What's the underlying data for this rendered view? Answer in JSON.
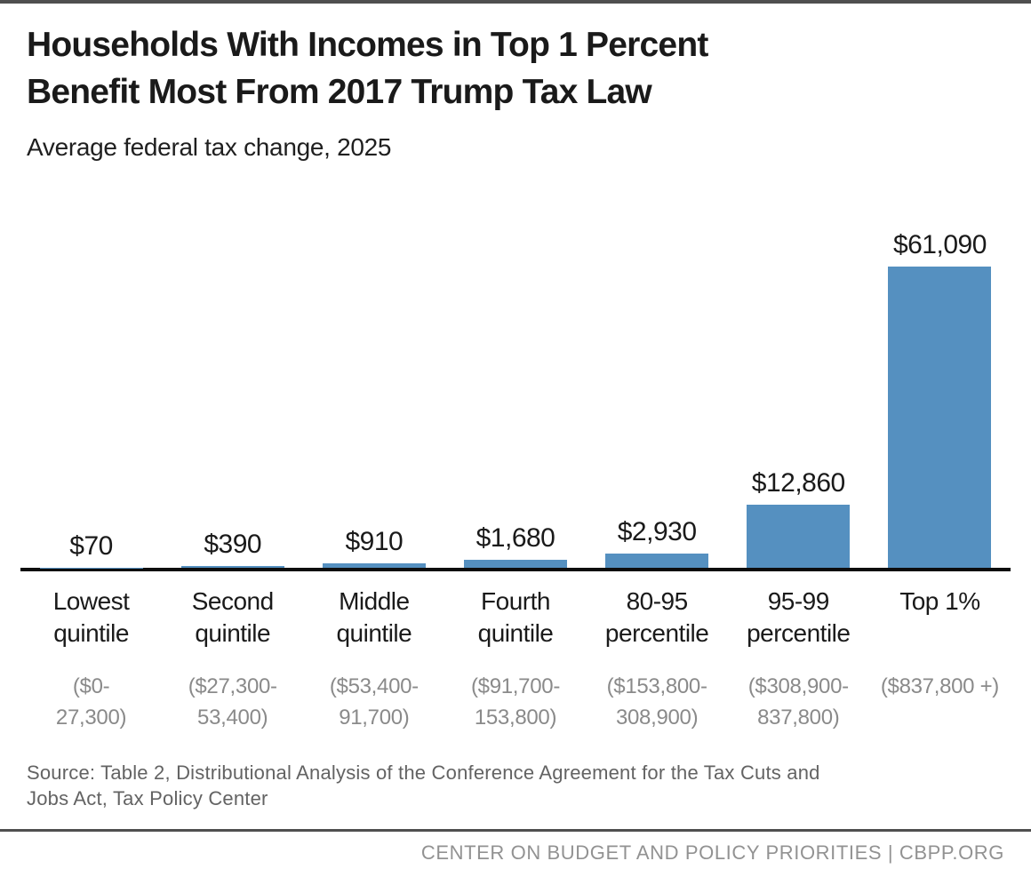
{
  "page": {
    "title_lines": [
      "Households With Incomes in Top 1 Percent",
      "Benefit Most From 2017 Trump Tax Law"
    ],
    "subtitle": "Average federal tax change, 2025",
    "source_lines": [
      "Source: Table 2, Distributional Analysis of the Conference Agreement for the Tax Cuts and",
      "Jobs Act, Tax Policy Center"
    ],
    "footer": "CENTER ON BUDGET AND POLICY PRIORITIES | CBPP.ORG"
  },
  "colors": {
    "bar": "#5590c0",
    "axis": "#0d0d0d",
    "top_bar": "#4f4f4f",
    "divider": "#4f4f4f",
    "text_dark": "#1a1a1a",
    "range_gray": "#8a8a8a",
    "source_gray": "#636363",
    "footer_gray": "#929292"
  },
  "chart_data": {
    "type": "bar",
    "title": "Households With Incomes in Top 1 Percent Benefit Most From 2017 Trump Tax Law",
    "subtitle": "Average federal tax change, 2025",
    "categories": [
      "Lowest quintile",
      "Second quintile",
      "Middle quintile",
      "Fourth quintile",
      "80-95 percentile",
      "95-99 percentile",
      "Top 1%"
    ],
    "income_ranges": [
      "($0-27,300)",
      "($27,300-53,400)",
      "($53,400-91,700)",
      "($91,700-153,800)",
      "($153,800-308,900)",
      "($308,900-837,800)",
      "($837,800 +)"
    ],
    "values": [
      70,
      390,
      910,
      1680,
      2930,
      12860,
      61090
    ],
    "value_labels": [
      "$70",
      "$390",
      "$910",
      "$1,680",
      "$2,930",
      "$12,860",
      "$61,090"
    ],
    "ylim": [
      0,
      61090
    ],
    "grid": false,
    "legend": false,
    "columns": [
      {
        "value_label": "$70",
        "cat_lines": [
          "Lowest",
          "quintile"
        ],
        "range_lines": [
          "($0-",
          "27,300)"
        ]
      },
      {
        "value_label": "$390",
        "cat_lines": [
          "Second",
          "quintile"
        ],
        "range_lines": [
          "($27,300-",
          "53,400)"
        ]
      },
      {
        "value_label": "$910",
        "cat_lines": [
          "Middle",
          "quintile"
        ],
        "range_lines": [
          "($53,400-",
          "91,700)"
        ]
      },
      {
        "value_label": "$1,680",
        "cat_lines": [
          "Fourth",
          "quintile"
        ],
        "range_lines": [
          "($91,700-",
          "153,800)"
        ]
      },
      {
        "value_label": "$2,930",
        "cat_lines": [
          "80-95",
          "percentile"
        ],
        "range_lines": [
          "($153,800-",
          "308,900)"
        ]
      },
      {
        "value_label": "$12,860",
        "cat_lines": [
          "95-99",
          "percentile"
        ],
        "range_lines": [
          "($308,900-",
          "837,800)"
        ]
      },
      {
        "value_label": "$61,090",
        "cat_lines": [
          "Top 1%"
        ],
        "range_lines": [
          "($837,800 +)"
        ]
      }
    ]
  }
}
